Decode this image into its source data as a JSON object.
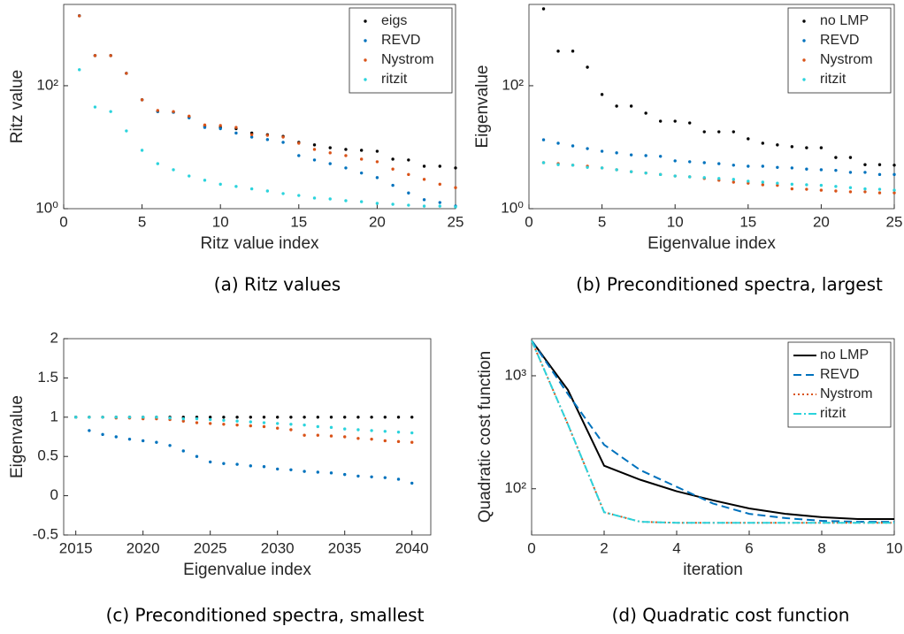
{
  "chart_data": [
    {
      "type": "scatter",
      "caption": "(a) Ritz values",
      "xlabel": "Ritz value index",
      "ylabel": "Ritz value",
      "xlim": [
        0,
        25
      ],
      "xticks": [
        0,
        5,
        10,
        15,
        20,
        25
      ],
      "ylim": [
        1,
        2100
      ],
      "yticks": [
        {
          "value": 1,
          "label": "10⁰"
        },
        {
          "value": 100,
          "label": "10²"
        }
      ],
      "ylog": true,
      "legend": "upper right",
      "x": [
        1,
        2,
        3,
        4,
        5,
        6,
        7,
        8,
        9,
        10,
        11,
        12,
        13,
        14,
        15,
        16,
        17,
        18,
        19,
        20,
        21,
        22,
        23,
        24,
        25
      ],
      "series": [
        {
          "name": "eigs",
          "color": "#000000",
          "values": [
            1370,
            309,
            309,
            159,
            59,
            38,
            37,
            31,
            22,
            21,
            20,
            17,
            16,
            15,
            12,
            10.9,
            9.8,
            9.2,
            8.9,
            8.6,
            6.4,
            6.2,
            4.9,
            4.9,
            4.6
          ]
        },
        {
          "name": "REVD",
          "color": "#0072bd",
          "values": [
            1380,
            309,
            309,
            159,
            59,
            38,
            37,
            30,
            21,
            20,
            17,
            14.6,
            13.3,
            12,
            7.3,
            6.2,
            5.4,
            4.6,
            3.8,
            3.2,
            2.4,
            1.8,
            1.4,
            1.26,
            1.1
          ]
        },
        {
          "name": "Nystrom",
          "color": "#d95319",
          "values": [
            1370,
            309,
            309,
            159,
            59,
            39.5,
            38,
            32,
            23,
            22.5,
            21,
            16,
            15.6,
            14.6,
            11.6,
            9.2,
            8.1,
            7.3,
            6.4,
            5.8,
            4.4,
            3.6,
            3.0,
            2.5,
            2.2
          ]
        },
        {
          "name": "ritzit",
          "color": "#2bd3dc",
          "values": [
            182,
            45,
            38,
            18.4,
            8.9,
            5.4,
            4.3,
            3.4,
            2.9,
            2.5,
            2.3,
            2.1,
            1.94,
            1.76,
            1.64,
            1.49,
            1.44,
            1.35,
            1.3,
            1.22,
            1.18,
            1.14,
            1.1,
            1.1,
            1.07
          ]
        }
      ]
    },
    {
      "type": "scatter",
      "caption": "(b) Preconditioned spectra, largest",
      "xlabel": "Eigenvalue index",
      "ylabel": "Eigenvalue",
      "xlim": [
        0,
        25
      ],
      "xticks": [
        0,
        5,
        10,
        15,
        20,
        25
      ],
      "ylim": [
        1,
        2100
      ],
      "yticks": [
        {
          "value": 1,
          "label": "10⁰"
        },
        {
          "value": 100,
          "label": "10²"
        }
      ],
      "ylog": true,
      "legend": "upper right",
      "x": [
        1,
        2,
        3,
        4,
        5,
        6,
        7,
        8,
        9,
        10,
        11,
        12,
        13,
        14,
        15,
        16,
        17,
        18,
        19,
        20,
        21,
        22,
        23,
        24,
        25
      ],
      "series": [
        {
          "name": "no LMP",
          "color": "#000000",
          "values": [
            1780,
            365,
            365,
            200,
            72,
            46.6,
            46.6,
            35.8,
            26.5,
            26.5,
            24.8,
            17.8,
            17.8,
            17.8,
            13.7,
            11.6,
            10.9,
            10.2,
            9.8,
            9.8,
            6.8,
            6.8,
            5.2,
            5.2,
            5.1
          ]
        },
        {
          "name": "REVD",
          "color": "#0072bd",
          "values": [
            13.2,
            11.6,
            10.5,
            9.5,
            8.6,
            8.1,
            7.5,
            7.3,
            7.1,
            6.0,
            5.8,
            5.6,
            5.4,
            5.1,
            4.9,
            4.9,
            4.7,
            4.6,
            4.4,
            4.3,
            4.2,
            3.9,
            3.9,
            3.6,
            3.6
          ]
        },
        {
          "name": "Nystrom",
          "color": "#d95319",
          "values": [
            5.6,
            5.4,
            5.1,
            4.9,
            4.6,
            4.3,
            4.0,
            3.8,
            3.6,
            3.4,
            3.3,
            3.1,
            2.9,
            2.7,
            2.6,
            2.45,
            2.4,
            2.1,
            2.07,
            2.0,
            1.94,
            1.88,
            1.88,
            1.81,
            1.81
          ]
        },
        {
          "name": "ritzit",
          "color": "#2bd3dc",
          "values": [
            5.6,
            5.2,
            5.1,
            4.7,
            4.6,
            4.3,
            4.0,
            3.8,
            3.6,
            3.4,
            3.3,
            3.2,
            3.1,
            3.0,
            2.8,
            2.7,
            2.6,
            2.5,
            2.45,
            2.4,
            2.3,
            2.2,
            2.1,
            2.07,
            2.0
          ]
        }
      ]
    },
    {
      "type": "scatter",
      "caption": "(c) Preconditioned spectra, smallest",
      "xlabel": "Eigenvalue index",
      "ylabel": "Eigenvalue",
      "xlim": [
        2014.1,
        2041.4
      ],
      "xticks": [
        2015,
        2020,
        2025,
        2030,
        2035,
        2040
      ],
      "ylim": [
        -0.5,
        2
      ],
      "yticks": [
        -0.5,
        0,
        0.5,
        1,
        1.5,
        2
      ],
      "ylog": false,
      "x": [
        2015,
        2016,
        2017,
        2018,
        2019,
        2020,
        2021,
        2022,
        2023,
        2024,
        2025,
        2026,
        2027,
        2028,
        2029,
        2030,
        2031,
        2032,
        2033,
        2034,
        2035,
        2036,
        2037,
        2038,
        2039,
        2040
      ],
      "series": [
        {
          "color": "#000000",
          "values": [
            1,
            1,
            1,
            1,
            1,
            1,
            1,
            1,
            1,
            1,
            1,
            1,
            1,
            1,
            1,
            1,
            1,
            1,
            1,
            1,
            1,
            1,
            1,
            1,
            1,
            1
          ]
        },
        {
          "color": "#0072bd",
          "values": [
            1.0,
            0.83,
            0.78,
            0.75,
            0.72,
            0.7,
            0.68,
            0.64,
            0.57,
            0.5,
            0.43,
            0.41,
            0.4,
            0.38,
            0.37,
            0.34,
            0.33,
            0.31,
            0.3,
            0.29,
            0.27,
            0.25,
            0.24,
            0.23,
            0.21,
            0.16
          ]
        },
        {
          "color": "#d95319",
          "values": [
            1,
            1,
            1,
            0.99,
            0.99,
            0.98,
            0.98,
            0.97,
            0.95,
            0.93,
            0.92,
            0.91,
            0.9,
            0.89,
            0.88,
            0.86,
            0.84,
            0.77,
            0.77,
            0.76,
            0.75,
            0.73,
            0.72,
            0.7,
            0.69,
            0.68
          ]
        },
        {
          "color": "#2bd3dc",
          "values": [
            1,
            1,
            1,
            1,
            1,
            1,
            1,
            0.99,
            0.98,
            0.98,
            0.97,
            0.96,
            0.95,
            0.94,
            0.93,
            0.92,
            0.91,
            0.9,
            0.88,
            0.87,
            0.85,
            0.84,
            0.83,
            0.82,
            0.81,
            0.8
          ]
        }
      ]
    },
    {
      "type": "line",
      "caption": "(d) Quadratic cost function",
      "xlabel": "iteration",
      "ylabel": "Quadratic cost function",
      "xlim": [
        0,
        10
      ],
      "xticks": [
        0,
        2,
        4,
        6,
        8,
        10
      ],
      "ylim": [
        39,
        2130
      ],
      "yticks": [
        {
          "value": 100,
          "label": "10²"
        },
        {
          "value": 1000,
          "label": "10³"
        }
      ],
      "ylog": true,
      "legend": "upper right",
      "x": [
        0,
        1,
        2,
        3,
        4,
        5,
        6,
        7,
        8,
        9,
        10
      ],
      "series": [
        {
          "name": "no LMP",
          "color": "#000000",
          "dash": "solid",
          "values": [
            2050,
            750,
            160,
            120,
            95,
            79,
            67,
            60,
            56,
            54,
            54
          ]
        },
        {
          "name": "REVD",
          "color": "#0072bd",
          "dash": "dashed",
          "values": [
            2050,
            690,
            245,
            146,
            104,
            74,
            60,
            55,
            52,
            51,
            51
          ]
        },
        {
          "name": "Nystrom",
          "color": "#d95319",
          "dash": "dotted",
          "values": [
            2050,
            372,
            62,
            51,
            50,
            50,
            50,
            50,
            50,
            50,
            50
          ]
        },
        {
          "name": "ritzit",
          "color": "#2bd3dc",
          "dash": "dashdot",
          "values": [
            2050,
            372,
            62,
            51,
            50,
            50,
            50,
            50,
            50,
            50,
            50
          ]
        }
      ]
    }
  ]
}
